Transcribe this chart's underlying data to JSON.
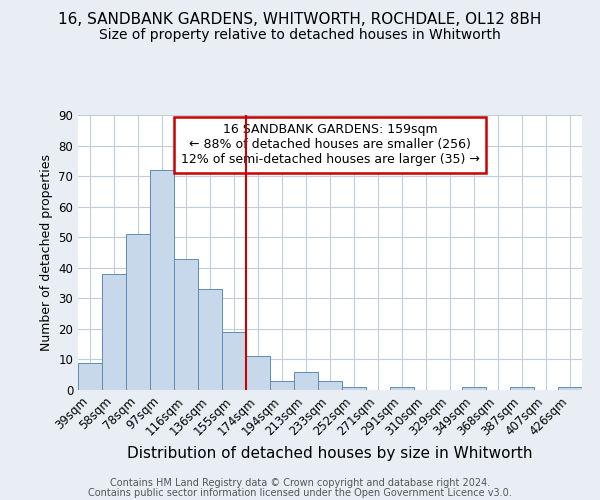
{
  "title1": "16, SANDBANK GARDENS, WHITWORTH, ROCHDALE, OL12 8BH",
  "title2": "Size of property relative to detached houses in Whitworth",
  "xlabel": "Distribution of detached houses by size in Whitworth",
  "ylabel": "Number of detached properties",
  "categories": [
    "39sqm",
    "58sqm",
    "78sqm",
    "97sqm",
    "116sqm",
    "136sqm",
    "155sqm",
    "174sqm",
    "194sqm",
    "213sqm",
    "233sqm",
    "252sqm",
    "271sqm",
    "291sqm",
    "310sqm",
    "329sqm",
    "349sqm",
    "368sqm",
    "387sqm",
    "407sqm",
    "426sqm"
  ],
  "values": [
    9,
    38,
    51,
    72,
    43,
    33,
    19,
    11,
    3,
    6,
    3,
    1,
    0,
    1,
    0,
    0,
    1,
    0,
    1,
    0,
    1
  ],
  "bar_color": "#c6d8ea",
  "bar_edge_color": "#5b8db8",
  "vline_x_index": 6,
  "vline_color": "#cc0000",
  "annotation_box_text": "16 SANDBANK GARDENS: 159sqm\n← 88% of detached houses are smaller (256)\n12% of semi-detached houses are larger (35) →",
  "annotation_box_color": "#cc0000",
  "annotation_box_fill": "#ffffff",
  "ylim": [
    0,
    90
  ],
  "yticks": [
    0,
    10,
    20,
    30,
    40,
    50,
    60,
    70,
    80,
    90
  ],
  "footer_line1": "Contains HM Land Registry data © Crown copyright and database right 2024.",
  "footer_line2": "Contains public sector information licensed under the Open Government Licence v3.0.",
  "bg_color": "#e8eef4",
  "plot_bg_color": "#ffffff",
  "grid_color": "#c0ccd8",
  "title1_fontsize": 11,
  "title2_fontsize": 10,
  "xlabel_fontsize": 11,
  "ylabel_fontsize": 9,
  "tick_fontsize": 8.5,
  "annot_fontsize": 9,
  "footer_fontsize": 7
}
